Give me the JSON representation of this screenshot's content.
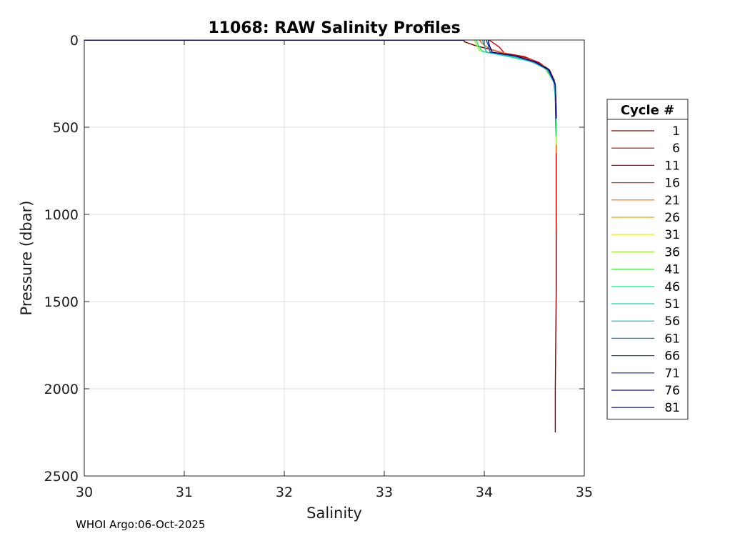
{
  "chart_data": {
    "type": "line",
    "title": "11068: RAW Salinity Profiles",
    "xlabel": "Salinity",
    "ylabel": "Pressure (dbar)",
    "xlim": [
      30,
      35
    ],
    "ylim": [
      0,
      2500
    ],
    "y_reversed": true,
    "grid": true,
    "xticks": [
      "30",
      "31",
      "32",
      "33",
      "34",
      "35"
    ],
    "yticks": [
      "0",
      "500",
      "1000",
      "1500",
      "2000",
      "2500"
    ],
    "legend": {
      "title": "Cycle #",
      "placement": "right",
      "entries": [
        {
          "label": "1",
          "color": "#800000"
        },
        {
          "label": "6",
          "color": "#a80000"
        },
        {
          "label": "11",
          "color": "#d40000"
        },
        {
          "label": "16",
          "color": "#e8301a"
        },
        {
          "label": "21",
          "color": "#e86a10"
        },
        {
          "label": "26",
          "color": "#e8a010"
        },
        {
          "label": "31",
          "color": "#f0e810"
        },
        {
          "label": "36",
          "color": "#a0f030"
        },
        {
          "label": "41",
          "color": "#50f050"
        },
        {
          "label": "46",
          "color": "#10e880"
        },
        {
          "label": "51",
          "color": "#10d8b0"
        },
        {
          "label": "56",
          "color": "#10b8c8"
        },
        {
          "label": "61",
          "color": "#1088c0"
        },
        {
          "label": "66",
          "color": "#1050b8"
        },
        {
          "label": "71",
          "color": "#1028a8"
        },
        {
          "label": "76",
          "color": "#101890"
        },
        {
          "label": "81",
          "color": "#000088"
        }
      ]
    },
    "series": [
      {
        "color": "#800000",
        "salinity": [
          33.8,
          33.8,
          33.9,
          34.1,
          34.2,
          34.4,
          34.55,
          34.65,
          34.7,
          34.71,
          34.72,
          34.72,
          34.72,
          34.71,
          34.71
        ],
        "pressure": [
          0,
          10,
          30,
          60,
          80,
          100,
          130,
          170,
          230,
          330,
          600,
          900,
          1400,
          2000,
          2250
        ]
      },
      {
        "color": "#d40000",
        "salinity": [
          34.05,
          34.1,
          34.15,
          34.2,
          34.4,
          34.55,
          34.66,
          34.71,
          34.72,
          34.72,
          34.72
        ],
        "pressure": [
          0,
          20,
          40,
          75,
          95,
          130,
          180,
          260,
          400,
          700,
          1100
        ]
      },
      {
        "color": "#e86a10",
        "salinity": [
          33.95,
          33.98,
          34.05,
          34.25,
          34.45,
          34.6,
          34.69,
          34.72,
          34.72
        ],
        "pressure": [
          0,
          20,
          50,
          85,
          110,
          150,
          220,
          380,
          650
        ]
      },
      {
        "color": "#a0f030",
        "salinity": [
          33.9,
          33.92,
          33.95,
          34.2,
          34.45,
          34.6,
          34.7,
          34.72,
          34.72
        ],
        "pressure": [
          0,
          25,
          60,
          90,
          120,
          160,
          240,
          400,
          600
        ]
      },
      {
        "color": "#10e880",
        "salinity": [
          33.92,
          33.94,
          33.98,
          34.25,
          34.48,
          34.62,
          34.7,
          34.72,
          34.72
        ],
        "pressure": [
          0,
          30,
          65,
          95,
          125,
          165,
          245,
          400,
          550
        ]
      },
      {
        "color": "#10b8c8",
        "salinity": [
          33.98,
          34.0,
          34.02,
          34.3,
          34.5,
          34.63,
          34.7,
          34.72
        ],
        "pressure": [
          0,
          30,
          70,
          95,
          130,
          170,
          250,
          420
        ]
      },
      {
        "color": "#1050b8",
        "salinity": [
          34.02,
          34.04,
          34.06,
          34.3,
          34.5,
          34.64,
          34.71,
          34.72
        ],
        "pressure": [
          0,
          30,
          70,
          90,
          125,
          170,
          250,
          440
        ]
      },
      {
        "color": "#000088",
        "salinity": [
          34.04,
          34.05,
          34.08,
          34.32,
          34.52,
          34.65,
          34.71,
          34.72
        ],
        "pressure": [
          0,
          30,
          70,
          92,
          128,
          172,
          255,
          450
        ]
      }
    ]
  },
  "footer": {
    "text": "WHOI Argo:06-Oct-2025"
  }
}
